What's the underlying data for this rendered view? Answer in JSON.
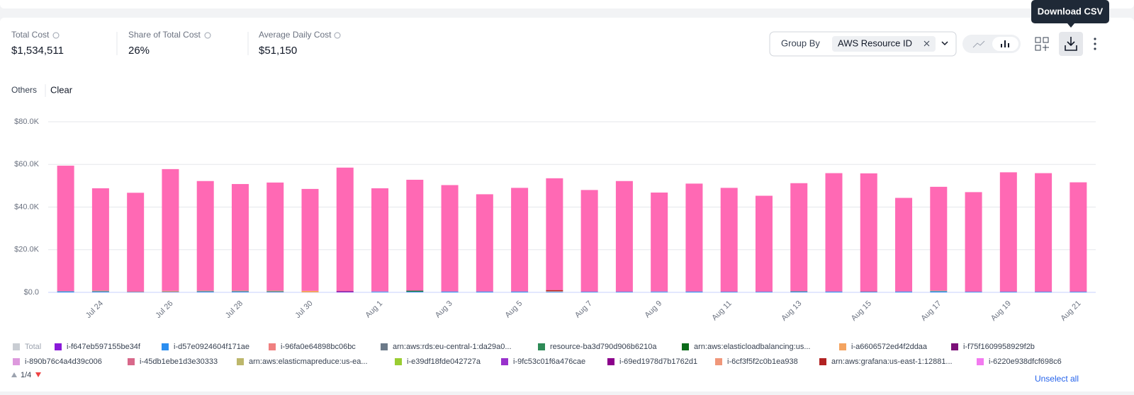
{
  "stats": [
    {
      "label": "Total Cost",
      "value": "$1,534,511"
    },
    {
      "label": "Share of Total Cost",
      "value": "26%"
    },
    {
      "label": "Average Daily Cost",
      "value": "$51,150"
    }
  ],
  "controls": {
    "group_by_label": "Group By",
    "group_by_value": "AWS Resource ID",
    "tooltip": "Download CSV",
    "clear": "Clear"
  },
  "chart_data": {
    "type": "bar",
    "stacked": true,
    "grid": true,
    "categories": [
      null,
      "Jul 24",
      null,
      "Jul 26",
      null,
      "Jul 28",
      null,
      "Jul 30",
      null,
      "Aug 1",
      null,
      "Aug 3",
      null,
      "Aug 5",
      null,
      "Aug 7",
      null,
      "Aug 9",
      null,
      "Aug 11",
      null,
      "Aug 13",
      null,
      "Aug 15",
      null,
      "Aug 17",
      null,
      "Aug 19",
      null,
      "Aug 21"
    ],
    "ylim": [
      0,
      80000
    ],
    "yticks": [
      {
        "value": 0,
        "label": "$0.0"
      },
      {
        "value": 20000,
        "label": "$20.0K"
      },
      {
        "value": 40000,
        "label": "$40.0K"
      },
      {
        "value": 60000,
        "label": "$60.0K"
      },
      {
        "value": 80000,
        "label": "$80.0K"
      }
    ],
    "total_label": "Total",
    "page": "1/4",
    "unselect": "Unselect all",
    "others": {
      "name": "Others",
      "color": "#ff69b4",
      "values": [
        58800,
        48000,
        46200,
        57100,
        51400,
        50000,
        50700,
        47800,
        57900,
        48300,
        52000,
        49900,
        45600,
        48600,
        52400,
        47700,
        51900,
        46300,
        50600,
        48700,
        45000,
        50600,
        55500,
        55300,
        43900,
        48700,
        46700,
        56000,
        55600,
        51300
      ]
    },
    "series": [
      {
        "name": "i-f647eb597155be34f",
        "color": "#8a1ad9",
        "values": [
          0,
          0,
          0,
          0,
          0,
          0,
          0,
          0,
          300,
          0,
          0,
          0,
          0,
          0,
          0,
          0,
          0,
          0,
          0,
          0,
          0,
          0,
          0,
          0,
          0,
          0,
          0,
          0,
          0,
          0
        ]
      },
      {
        "name": "i-d57e0924604f171ae",
        "color": "#2b8ef0",
        "values": [
          400,
          300,
          200,
          200,
          300,
          300,
          200,
          0,
          0,
          300,
          300,
          400,
          400,
          400,
          300,
          300,
          300,
          300,
          400,
          300,
          300,
          300,
          400,
          300,
          400,
          500,
          300,
          300,
          300,
          300
        ]
      },
      {
        "name": "i-96fa0e64898bc06bc",
        "color": "#f08080",
        "values": [
          0,
          0,
          300,
          300,
          0,
          0,
          0,
          0,
          0,
          0,
          0,
          0,
          0,
          0,
          0,
          0,
          0,
          0,
          0,
          0,
          0,
          0,
          0,
          0,
          0,
          0,
          0,
          0,
          0,
          0
        ]
      },
      {
        "name": "arn:aws:rds:eu-central-1:da29a0...",
        "color": "#6c7a89",
        "values": [
          200,
          300,
          0,
          0,
          300,
          300,
          300,
          0,
          0,
          0,
          0,
          0,
          0,
          0,
          0,
          0,
          0,
          0,
          0,
          0,
          0,
          300,
          0,
          0,
          0,
          0,
          0,
          0,
          0,
          0
        ]
      },
      {
        "name": "resource-ba3d790d906b6210a",
        "color": "#2e8b57",
        "values": [
          0,
          0,
          0,
          0,
          0,
          0,
          0,
          0,
          0,
          0,
          200,
          0,
          0,
          0,
          0,
          0,
          0,
          0,
          0,
          0,
          0,
          0,
          0,
          0,
          0,
          0,
          0,
          0,
          0,
          0
        ]
      },
      {
        "name": "arn:aws:elasticloadbalancing:us...",
        "color": "#0b6b1a",
        "values": [
          0,
          0,
          0,
          0,
          0,
          0,
          0,
          0,
          0,
          0,
          300,
          0,
          0,
          0,
          0,
          0,
          0,
          0,
          0,
          0,
          0,
          0,
          0,
          0,
          0,
          0,
          0,
          0,
          0,
          0
        ]
      },
      {
        "name": "i-a6606572ed4f2ddaa",
        "color": "#f4a460",
        "values": [
          0,
          0,
          0,
          0,
          0,
          0,
          0,
          700,
          0,
          0,
          0,
          0,
          0,
          0,
          0,
          0,
          0,
          0,
          0,
          0,
          0,
          0,
          0,
          0,
          0,
          0,
          0,
          0,
          0,
          0
        ]
      },
      {
        "name": "i-f75f1609958929f2b",
        "color": "#7b1078",
        "values": [
          0,
          0,
          0,
          0,
          0,
          0,
          0,
          0,
          300,
          0,
          0,
          0,
          0,
          0,
          0,
          0,
          0,
          0,
          0,
          0,
          0,
          0,
          0,
          0,
          0,
          0,
          0,
          0,
          0,
          0
        ]
      },
      {
        "name": "i-890b76c4a4d39c006",
        "color": "#dd99dd",
        "values": [
          0,
          0,
          0,
          0,
          0,
          0,
          0,
          0,
          0,
          200,
          0,
          0,
          0,
          0,
          0,
          0,
          0,
          200,
          0,
          0,
          0,
          0,
          0,
          0,
          0,
          0,
          0,
          0,
          0,
          0
        ]
      },
      {
        "name": "i-45db1ebe1d3e30333",
        "color": "#d8688a",
        "values": [
          0,
          0,
          0,
          0,
          0,
          0,
          0,
          0,
          0,
          0,
          0,
          0,
          0,
          0,
          0,
          0,
          0,
          0,
          0,
          0,
          0,
          0,
          0,
          200,
          0,
          0,
          0,
          0,
          0,
          0
        ]
      },
      {
        "name": "arn:aws:elasticmapreduce:us-ea...",
        "color": "#bdb76b",
        "values": [
          0,
          200,
          0,
          200,
          200,
          200,
          300,
          0,
          0,
          0,
          0,
          0,
          0,
          0,
          0,
          0,
          0,
          0,
          0,
          0,
          0,
          0,
          0,
          0,
          0,
          300,
          0,
          0,
          0,
          0
        ]
      },
      {
        "name": "i-e39df18fde042727a",
        "color": "#9acd32",
        "values": [
          0,
          0,
          0,
          0,
          0,
          0,
          0,
          0,
          0,
          0,
          0,
          0,
          0,
          0,
          0,
          0,
          0,
          0,
          0,
          0,
          0,
          0,
          0,
          0,
          0,
          0,
          0,
          0,
          0,
          0
        ]
      },
      {
        "name": "i-9fc53c01f6a476cae",
        "color": "#9932cc",
        "values": [
          0,
          0,
          0,
          0,
          0,
          0,
          0,
          0,
          0,
          0,
          0,
          0,
          0,
          0,
          0,
          0,
          0,
          0,
          0,
          0,
          0,
          0,
          0,
          0,
          0,
          0,
          0,
          0,
          0,
          0
        ]
      },
      {
        "name": "i-69ed1978d7b1762d1",
        "color": "#8b008b",
        "values": [
          0,
          0,
          0,
          0,
          0,
          0,
          0,
          0,
          0,
          0,
          0,
          0,
          0,
          0,
          0,
          0,
          0,
          0,
          0,
          0,
          0,
          0,
          0,
          0,
          0,
          0,
          0,
          0,
          0,
          0
        ]
      },
      {
        "name": "i-6cf3f5f2c0b1ea938",
        "color": "#f0977a",
        "values": [
          0,
          0,
          0,
          0,
          0,
          0,
          0,
          0,
          0,
          0,
          0,
          0,
          0,
          0,
          300,
          0,
          0,
          0,
          0,
          0,
          0,
          0,
          0,
          0,
          0,
          0,
          0,
          0,
          0,
          0
        ]
      },
      {
        "name": "arn:aws:grafana:us-east-1:12881...",
        "color": "#b22222",
        "values": [
          0,
          0,
          0,
          0,
          0,
          0,
          0,
          0,
          0,
          0,
          0,
          0,
          0,
          0,
          500,
          0,
          0,
          0,
          0,
          0,
          0,
          0,
          0,
          0,
          0,
          0,
          0,
          0,
          0,
          0
        ]
      },
      {
        "name": "i-6220e938dfcf698c6",
        "color": "#f37af0",
        "values": [
          0,
          0,
          0,
          0,
          0,
          0,
          0,
          0,
          0,
          0,
          0,
          0,
          0,
          0,
          0,
          0,
          0,
          0,
          0,
          0,
          0,
          0,
          0,
          0,
          0,
          0,
          0,
          0,
          0,
          0
        ]
      }
    ]
  }
}
